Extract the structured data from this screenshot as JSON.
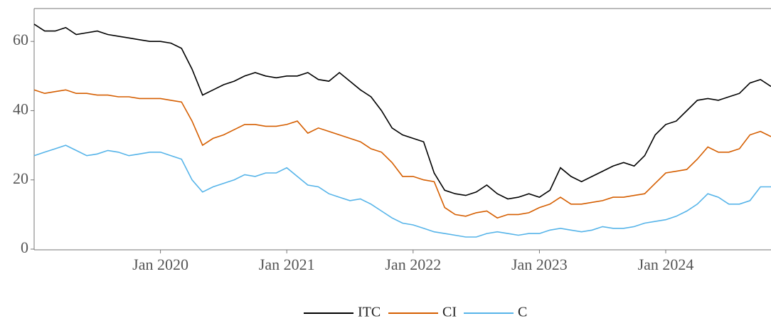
{
  "chart_data": {
    "type": "line",
    "x": [
      "2019-01",
      "2019-02",
      "2019-03",
      "2019-04",
      "2019-05",
      "2019-06",
      "2019-07",
      "2019-08",
      "2019-09",
      "2019-10",
      "2019-11",
      "2019-12",
      "2020-01",
      "2020-02",
      "2020-03",
      "2020-04",
      "2020-05",
      "2020-06",
      "2020-07",
      "2020-08",
      "2020-09",
      "2020-10",
      "2020-11",
      "2020-12",
      "2021-01",
      "2021-02",
      "2021-03",
      "2021-04",
      "2021-05",
      "2021-06",
      "2021-07",
      "2021-08",
      "2021-09",
      "2021-10",
      "2021-11",
      "2021-12",
      "2022-01",
      "2022-02",
      "2022-03",
      "2022-04",
      "2022-05",
      "2022-06",
      "2022-07",
      "2022-08",
      "2022-09",
      "2022-10",
      "2022-11",
      "2022-12",
      "2023-01",
      "2023-02",
      "2023-03",
      "2023-04",
      "2023-05",
      "2023-06",
      "2023-07",
      "2023-08",
      "2023-09",
      "2023-10",
      "2023-11",
      "2023-12",
      "2024-01",
      "2024-02",
      "2024-03",
      "2024-04",
      "2024-05",
      "2024-06",
      "2024-07",
      "2024-08",
      "2024-09",
      "2024-10",
      "2024-11"
    ],
    "series": [
      {
        "name": "ITC",
        "color": "#000000",
        "values": [
          65,
          63,
          63,
          64,
          62,
          62.5,
          63,
          62,
          61.5,
          61,
          60.5,
          60,
          60,
          59.5,
          58,
          52,
          44.5,
          46,
          47.5,
          48.5,
          50,
          51,
          50,
          49.5,
          50,
          50,
          51,
          49,
          48.5,
          51,
          48.5,
          46,
          44,
          40,
          35,
          33,
          32,
          31,
          22,
          17,
          16,
          15.5,
          16.5,
          18.5,
          16,
          14.5,
          15,
          16,
          15,
          17,
          23.5,
          21,
          19.5,
          21,
          22.5,
          24,
          25,
          24,
          27,
          33,
          36,
          37,
          40,
          43,
          43.5,
          43,
          44,
          45,
          48,
          49,
          47
        ]
      },
      {
        "name": "CI",
        "color": "#d55e00",
        "values": [
          46,
          45,
          45.5,
          46,
          45,
          45,
          44.5,
          44.5,
          44,
          44,
          43.5,
          43.5,
          43.5,
          43,
          42.5,
          37,
          30,
          32,
          33,
          34.5,
          36,
          36,
          35.5,
          35.5,
          36,
          37,
          33.5,
          35,
          34,
          33,
          32,
          31,
          29,
          28,
          25,
          21,
          21,
          20,
          19.5,
          12,
          10,
          9.5,
          10.5,
          11,
          9,
          10,
          10,
          10.5,
          12,
          13,
          15,
          13,
          13,
          13.5,
          14,
          15,
          15,
          15.5,
          16,
          19,
          22,
          22.5,
          23,
          26,
          29.5,
          28,
          28,
          29,
          33,
          34,
          32.5
        ]
      },
      {
        "name": "C",
        "color": "#56b4e9",
        "values": [
          27,
          28,
          29,
          30,
          28.5,
          27,
          27.5,
          28.5,
          28,
          27,
          27.5,
          28,
          28,
          27,
          26,
          20,
          16.5,
          18,
          19,
          20,
          21.5,
          21,
          22,
          22,
          23.5,
          21,
          18.5,
          18,
          16,
          15,
          14,
          14.5,
          13,
          11,
          9,
          7.5,
          7,
          6,
          5,
          4.5,
          4,
          3.5,
          3.5,
          4.5,
          5,
          4.5,
          4,
          4.5,
          4.5,
          5.5,
          6,
          5.5,
          5,
          5.5,
          6.5,
          6,
          6,
          6.5,
          7.5,
          8,
          8.5,
          9.5,
          11,
          13,
          16,
          15,
          13,
          13,
          14,
          18,
          18
        ]
      }
    ],
    "xlim": [
      "2019-01",
      "2024-11"
    ],
    "xticks": [
      {
        "value": "2020-01",
        "label": "Jan 2020"
      },
      {
        "value": "2021-01",
        "label": "Jan 2021"
      },
      {
        "value": "2022-01",
        "label": "Jan 2022"
      },
      {
        "value": "2023-01",
        "label": "Jan 2023"
      },
      {
        "value": "2024-01",
        "label": "Jan 2024"
      }
    ],
    "ylim": [
      0,
      69.5
    ],
    "yticks": [
      0,
      20,
      40,
      60
    ],
    "legend": "bottom"
  }
}
